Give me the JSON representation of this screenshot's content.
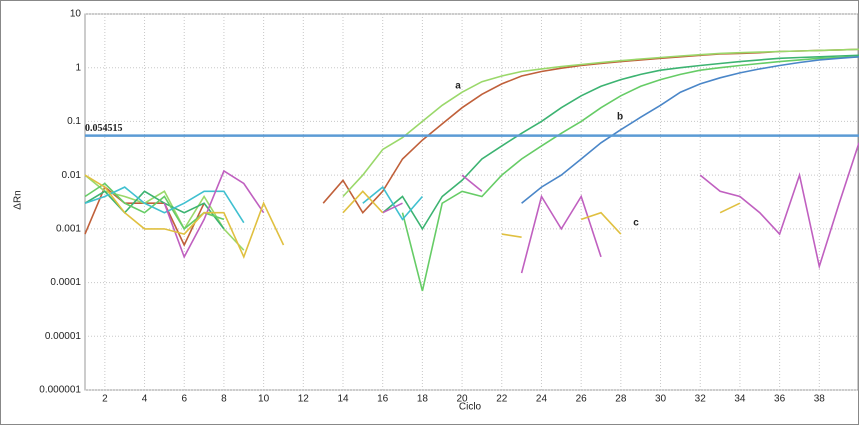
{
  "chart_data": {
    "type": "line",
    "log_scale_y": true,
    "grid": true,
    "x_label": "Ciclo",
    "y_label": "ΔRn",
    "x": [
      1,
      2,
      3,
      4,
      5,
      6,
      7,
      8,
      9,
      10,
      11,
      12,
      13,
      14,
      15,
      16,
      17,
      18,
      19,
      20,
      21,
      22,
      23,
      24,
      25,
      26,
      27,
      28,
      29,
      30,
      31,
      32,
      33,
      34,
      35,
      36,
      37,
      38,
      39,
      40
    ],
    "xlim": [
      1,
      40
    ],
    "xticks": [
      2,
      4,
      6,
      8,
      10,
      12,
      14,
      16,
      18,
      20,
      22,
      24,
      26,
      28,
      30,
      32,
      34,
      36,
      38
    ],
    "ylim": [
      1e-06,
      10
    ],
    "yticks": [
      1e-06,
      1e-05,
      0.0001,
      0.001,
      0.01,
      0.1,
      1,
      10
    ],
    "threshold": 0.054515,
    "threshold_color": "#5b9bd5",
    "annotations": [
      "a",
      "b",
      "c"
    ],
    "series": [
      {
        "color": "#c0603a",
        "values": [
          0.0008,
          0.006,
          0.003,
          0.003,
          0.003,
          0.0005,
          0.003,
          null,
          null,
          null,
          null,
          null,
          0.003,
          0.008,
          0.002,
          0.005,
          0.02,
          0.045,
          0.09,
          0.18,
          0.32,
          0.5,
          0.7,
          0.85,
          0.98,
          1.1,
          1.2,
          1.3,
          1.4,
          1.5,
          1.6,
          1.7,
          1.8,
          1.85,
          1.9,
          2.0,
          2.05,
          2.1,
          2.15,
          2.2
        ]
      },
      {
        "color": "#9ad86a",
        "values": [
          0.01,
          0.005,
          0.004,
          0.003,
          0.005,
          0.001,
          0.004,
          0.001,
          0.0004,
          null,
          null,
          null,
          null,
          0.004,
          0.01,
          0.03,
          0.05,
          0.1,
          0.2,
          0.35,
          0.55,
          0.7,
          0.85,
          0.95,
          1.05,
          1.15,
          1.25,
          1.35,
          1.45,
          1.55,
          1.65,
          1.75,
          1.85,
          1.9,
          1.95,
          2.0,
          2.05,
          2.1,
          2.15,
          2.2
        ]
      },
      {
        "color": "#3cb371",
        "values": [
          0.003,
          0.005,
          0.002,
          0.005,
          0.003,
          0.002,
          0.003,
          0.001,
          null,
          null,
          null,
          null,
          null,
          null,
          null,
          0.002,
          0.004,
          0.001,
          0.004,
          0.008,
          0.02,
          0.035,
          0.06,
          0.1,
          0.18,
          0.3,
          0.45,
          0.6,
          0.75,
          0.9,
          1.0,
          1.1,
          1.2,
          1.3,
          1.4,
          1.5,
          1.55,
          1.6,
          1.65,
          1.7
        ]
      },
      {
        "color": "#66cc66",
        "values": [
          0.004,
          0.007,
          0.003,
          0.002,
          0.004,
          0.001,
          0.002,
          0.0015,
          null,
          null,
          null,
          null,
          null,
          null,
          null,
          null,
          0.002,
          7e-05,
          0.003,
          0.005,
          0.004,
          0.01,
          0.02,
          0.035,
          0.06,
          0.1,
          0.18,
          0.3,
          0.45,
          0.6,
          0.75,
          0.9,
          1.0,
          1.1,
          1.2,
          1.3,
          1.4,
          1.5,
          1.55,
          1.6
        ]
      },
      {
        "color": "#4a86c8",
        "values": [
          null,
          null,
          null,
          null,
          null,
          null,
          null,
          null,
          null,
          null,
          null,
          null,
          null,
          null,
          null,
          null,
          null,
          null,
          null,
          null,
          null,
          null,
          0.003,
          0.006,
          0.01,
          0.02,
          0.04,
          0.07,
          0.12,
          0.2,
          0.35,
          0.5,
          0.65,
          0.8,
          0.95,
          1.1,
          1.25,
          1.4,
          1.5,
          1.6
        ]
      },
      {
        "color": "#40c0d0",
        "values": [
          0.003,
          0.004,
          0.006,
          0.003,
          0.002,
          0.003,
          0.005,
          0.005,
          0.0013,
          null,
          null,
          null,
          null,
          null,
          0.003,
          0.006,
          0.0015,
          0.004,
          null,
          null,
          null,
          null,
          null,
          null,
          null,
          null,
          null,
          null,
          null,
          null,
          null,
          null,
          null,
          null,
          null,
          null,
          null,
          null,
          null,
          null
        ]
      },
      {
        "color": "#c060c0",
        "values": [
          null,
          null,
          null,
          null,
          0.003,
          0.0003,
          0.0015,
          0.012,
          0.007,
          0.002,
          null,
          null,
          null,
          null,
          null,
          0.002,
          0.003,
          null,
          null,
          0.01,
          0.005,
          null,
          0.00015,
          0.004,
          0.001,
          0.004,
          0.0003,
          null,
          null,
          null,
          null,
          0.01,
          0.005,
          0.004,
          0.002,
          0.0008,
          0.01,
          0.0002,
          0.003,
          0.04
        ]
      },
      {
        "color": "#e0c040",
        "values": [
          0.01,
          0.006,
          0.002,
          0.001,
          0.001,
          0.0008,
          0.002,
          0.002,
          0.0003,
          0.003,
          0.0005,
          null,
          null,
          0.002,
          0.005,
          0.002,
          null,
          null,
          null,
          null,
          null,
          0.0008,
          0.0007,
          null,
          null,
          0.0015,
          0.002,
          0.0008,
          null,
          null,
          null,
          null,
          0.002,
          0.003,
          null,
          null,
          null,
          null,
          null,
          null
        ]
      }
    ]
  }
}
